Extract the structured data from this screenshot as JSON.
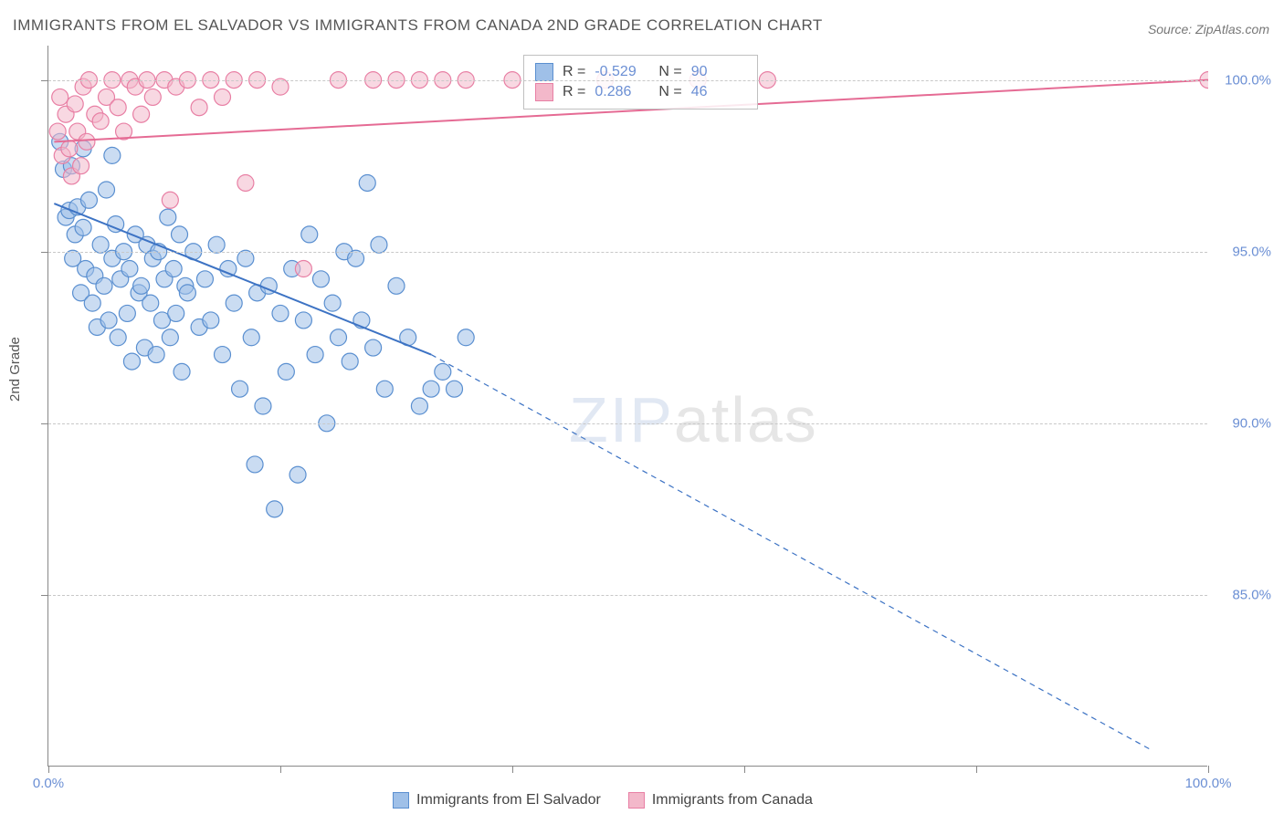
{
  "title": "IMMIGRANTS FROM EL SALVADOR VS IMMIGRANTS FROM CANADA 2ND GRADE CORRELATION CHART",
  "source": "Source: ZipAtlas.com",
  "y_axis_label": "2nd Grade",
  "watermark_bold": "ZIP",
  "watermark_thin": "atlas",
  "chart": {
    "type": "scatter",
    "xlim": [
      0,
      100
    ],
    "ylim": [
      80,
      101
    ],
    "xtick_positions": [
      0,
      20,
      40,
      60,
      80,
      100
    ],
    "xtick_labels_shown": {
      "0": "0.0%",
      "100": "100.0%"
    },
    "ytick_positions": [
      85,
      90,
      95,
      100
    ],
    "ytick_labels": [
      "85.0%",
      "90.0%",
      "95.0%",
      "100.0%"
    ],
    "grid_color": "#c8c8c8",
    "background_color": "#ffffff",
    "axis_color": "#888888",
    "tick_label_color": "#6b8fd4",
    "marker_radius": 9,
    "marker_opacity": 0.55,
    "marker_stroke_width": 1.2
  },
  "series": [
    {
      "name": "Immigrants from El Salvador",
      "color_fill": "#9fc0e8",
      "color_stroke": "#5a8fd0",
      "r_value": "-0.529",
      "n_value": "90",
      "trend": {
        "solid": {
          "x1": 0.5,
          "y1": 96.4,
          "x2": 33,
          "y2": 92.0
        },
        "dashed": {
          "x1": 33,
          "y1": 92.0,
          "x2": 95,
          "y2": 80.5
        },
        "line_color": "#3d73c4",
        "line_width": 2
      },
      "points": [
        [
          1.0,
          98.2
        ],
        [
          1.3,
          97.4
        ],
        [
          1.5,
          96.0
        ],
        [
          1.8,
          96.2
        ],
        [
          2.0,
          97.5
        ],
        [
          2.1,
          94.8
        ],
        [
          2.3,
          95.5
        ],
        [
          2.5,
          96.3
        ],
        [
          2.8,
          93.8
        ],
        [
          3.0,
          95.7
        ],
        [
          3.2,
          94.5
        ],
        [
          3.5,
          96.5
        ],
        [
          3.8,
          93.5
        ],
        [
          4.0,
          94.3
        ],
        [
          4.2,
          92.8
        ],
        [
          4.5,
          95.2
        ],
        [
          4.8,
          94.0
        ],
        [
          5.0,
          96.8
        ],
        [
          5.2,
          93.0
        ],
        [
          5.5,
          94.8
        ],
        [
          5.8,
          95.8
        ],
        [
          6.0,
          92.5
        ],
        [
          6.2,
          94.2
        ],
        [
          6.5,
          95.0
        ],
        [
          6.8,
          93.2
        ],
        [
          7.0,
          94.5
        ],
        [
          7.2,
          91.8
        ],
        [
          7.5,
          95.5
        ],
        [
          7.8,
          93.8
        ],
        [
          8.0,
          94.0
        ],
        [
          8.3,
          92.2
        ],
        [
          8.5,
          95.2
        ],
        [
          8.8,
          93.5
        ],
        [
          9.0,
          94.8
        ],
        [
          9.3,
          92.0
        ],
        [
          9.5,
          95.0
        ],
        [
          9.8,
          93.0
        ],
        [
          10.0,
          94.2
        ],
        [
          10.3,
          96.0
        ],
        [
          10.5,
          92.5
        ],
        [
          10.8,
          94.5
        ],
        [
          11.0,
          93.2
        ],
        [
          11.3,
          95.5
        ],
        [
          11.5,
          91.5
        ],
        [
          11.8,
          94.0
        ],
        [
          12.0,
          93.8
        ],
        [
          12.5,
          95.0
        ],
        [
          13.0,
          92.8
        ],
        [
          13.5,
          94.2
        ],
        [
          14.0,
          93.0
        ],
        [
          14.5,
          95.2
        ],
        [
          15.0,
          92.0
        ],
        [
          15.5,
          94.5
        ],
        [
          16.0,
          93.5
        ],
        [
          16.5,
          91.0
        ],
        [
          17.0,
          94.8
        ],
        [
          17.5,
          92.5
        ],
        [
          18.0,
          93.8
        ],
        [
          18.5,
          90.5
        ],
        [
          19.0,
          94.0
        ],
        [
          19.5,
          87.5
        ],
        [
          20.0,
          93.2
        ],
        [
          20.5,
          91.5
        ],
        [
          21.0,
          94.5
        ],
        [
          21.5,
          88.5
        ],
        [
          22.0,
          93.0
        ],
        [
          22.5,
          95.5
        ],
        [
          23.0,
          92.0
        ],
        [
          23.5,
          94.2
        ],
        [
          24.0,
          90.0
        ],
        [
          24.5,
          93.5
        ],
        [
          25.0,
          92.5
        ],
        [
          25.5,
          95.0
        ],
        [
          26.0,
          91.8
        ],
        [
          26.5,
          94.8
        ],
        [
          27.0,
          93.0
        ],
        [
          27.5,
          97.0
        ],
        [
          28.0,
          92.2
        ],
        [
          28.5,
          95.2
        ],
        [
          29.0,
          91.0
        ],
        [
          30.0,
          94.0
        ],
        [
          31.0,
          92.5
        ],
        [
          32.0,
          90.5
        ],
        [
          33.0,
          91.0
        ],
        [
          34.0,
          91.5
        ],
        [
          35.0,
          91.0
        ],
        [
          36.0,
          92.5
        ],
        [
          17.8,
          88.8
        ],
        [
          5.5,
          97.8
        ],
        [
          3.0,
          98.0
        ]
      ]
    },
    {
      "name": "Immigrants from Canada",
      "color_fill": "#f3b8ca",
      "color_stroke": "#e87fa4",
      "r_value": "0.286",
      "n_value": "46",
      "trend": {
        "solid": {
          "x1": 0.5,
          "y1": 98.2,
          "x2": 100,
          "y2": 100.0
        },
        "dashed": null,
        "line_color": "#e56b94",
        "line_width": 2
      },
      "points": [
        [
          0.8,
          98.5
        ],
        [
          1.0,
          99.5
        ],
        [
          1.2,
          97.8
        ],
        [
          1.5,
          99.0
        ],
        [
          1.8,
          98.0
        ],
        [
          2.0,
          97.2
        ],
        [
          2.3,
          99.3
        ],
        [
          2.5,
          98.5
        ],
        [
          2.8,
          97.5
        ],
        [
          3.0,
          99.8
        ],
        [
          3.3,
          98.2
        ],
        [
          3.5,
          100.0
        ],
        [
          4.0,
          99.0
        ],
        [
          4.5,
          98.8
        ],
        [
          5.0,
          99.5
        ],
        [
          5.5,
          100.0
        ],
        [
          6.0,
          99.2
        ],
        [
          6.5,
          98.5
        ],
        [
          7.0,
          100.0
        ],
        [
          7.5,
          99.8
        ],
        [
          8.0,
          99.0
        ],
        [
          8.5,
          100.0
        ],
        [
          9.0,
          99.5
        ],
        [
          10.0,
          100.0
        ],
        [
          10.5,
          96.5
        ],
        [
          11.0,
          99.8
        ],
        [
          12.0,
          100.0
        ],
        [
          13.0,
          99.2
        ],
        [
          14.0,
          100.0
        ],
        [
          15.0,
          99.5
        ],
        [
          16.0,
          100.0
        ],
        [
          17.0,
          97.0
        ],
        [
          18.0,
          100.0
        ],
        [
          20.0,
          99.8
        ],
        [
          22.0,
          94.5
        ],
        [
          25.0,
          100.0
        ],
        [
          28.0,
          100.0
        ],
        [
          30.0,
          100.0
        ],
        [
          32.0,
          100.0
        ],
        [
          34.0,
          100.0
        ],
        [
          36.0,
          100.0
        ],
        [
          40.0,
          100.0
        ],
        [
          48.0,
          100.0
        ],
        [
          56.0,
          100.0
        ],
        [
          62.0,
          100.0
        ],
        [
          100.0,
          100.0
        ]
      ]
    }
  ],
  "legend": {
    "r_label": "R =",
    "n_label": "N ="
  }
}
